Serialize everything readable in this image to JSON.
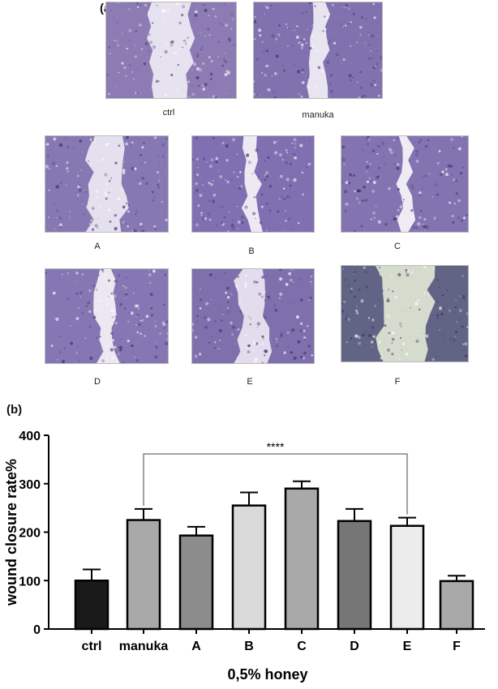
{
  "panels": {
    "a": "(a)",
    "b": "(b)"
  },
  "micrographs": [
    {
      "id": "ctrl",
      "caption": "ctrl",
      "tone": "#7d6aa8",
      "bg": "#e6e2ef",
      "gap": 0.3
    },
    {
      "id": "manuka",
      "caption": "manuka",
      "tone": "#6f5da3",
      "bg": "#e8e4f0",
      "gap": 0.12
    },
    {
      "id": "A",
      "caption": "A",
      "tone": "#7665a8",
      "bg": "#e4e0ee",
      "gap": 0.28
    },
    {
      "id": "B",
      "caption": "B",
      "tone": "#6e5aa4",
      "bg": "#ece9f3",
      "gap": 0.1
    },
    {
      "id": "C",
      "caption": "C",
      "tone": "#705fa5",
      "bg": "#eeebf4",
      "gap": 0.08
    },
    {
      "id": "D",
      "caption": "D",
      "tone": "#7462a8",
      "bg": "#ebe8f2",
      "gap": 0.14
    },
    {
      "id": "E",
      "caption": "E",
      "tone": "#6d5ca2",
      "bg": "#e2dcec",
      "gap": 0.24
    },
    {
      "id": "F",
      "caption": "F",
      "tone": "#4d4f78",
      "bg": "#d6dccd",
      "gap": 0.4
    }
  ],
  "chart_data": {
    "type": "bar",
    "categories": [
      "ctrl",
      "manuka",
      "A",
      "B",
      "C",
      "D",
      "E",
      "F"
    ],
    "values": [
      100,
      225,
      193,
      255,
      290,
      223,
      213,
      99
    ],
    "errors": [
      23,
      23,
      18,
      27,
      15,
      25,
      17,
      11
    ],
    "colors": [
      "#1a1a1a",
      "#a9a9a9",
      "#8c8c8c",
      "#dadada",
      "#a9a9a9",
      "#767676",
      "#ececec",
      "#a9a9a9"
    ],
    "xlabel": "0,5% honey",
    "ylabel": "wound closure rate%",
    "ylim": [
      0,
      400
    ],
    "yticks": [
      0,
      100,
      200,
      300,
      400
    ],
    "significance": {
      "label": "****",
      "from": "manuka",
      "to": "E"
    }
  }
}
